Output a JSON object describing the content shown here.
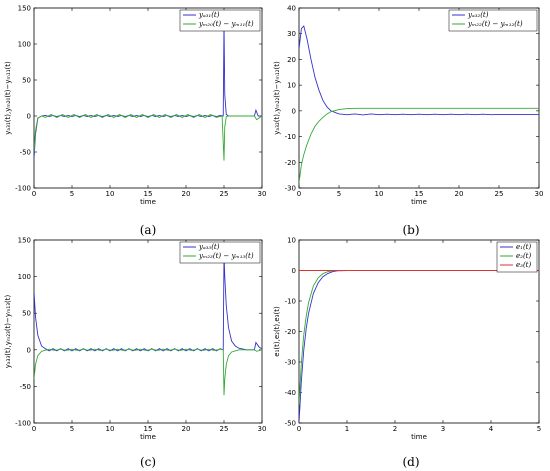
{
  "figure": {
    "captions": [
      "(a)",
      "(b)",
      "(c)",
      "(d)"
    ]
  },
  "chart_data": [
    {
      "type": "line",
      "caption": "(a)",
      "xlabel": "time",
      "ylabel": "yₐ₃₁(t),yₘ₂₀(t)−yₘ₁₁(t)",
      "xlim": [
        0,
        30
      ],
      "ylim": [
        -100,
        150
      ],
      "xticks": [
        "0",
        "5",
        "10",
        "15",
        "20",
        "25",
        "30"
      ],
      "yticks": [
        "-100",
        "-50",
        "0",
        "50",
        "100",
        "150"
      ],
      "legend_position": "top-right",
      "series": [
        {
          "name": "yₐ₃₁(t)",
          "color": "#3333cc",
          "x": [
            0,
            0.2,
            0.5,
            1,
            1.5,
            2,
            2.5,
            3,
            3.5,
            4,
            4.5,
            5,
            5.5,
            6,
            6.5,
            7,
            7.5,
            8,
            8.5,
            9,
            9.5,
            10,
            10.5,
            11,
            11.5,
            12,
            12.5,
            13,
            13.5,
            14,
            14.5,
            15,
            15.5,
            16,
            16.5,
            17,
            17.5,
            18,
            18.5,
            19,
            19.5,
            20,
            20.5,
            21,
            21.5,
            22,
            22.5,
            23,
            23.5,
            24,
            24.5,
            24.9,
            25.0,
            25.1,
            25.3,
            25.6,
            26,
            27,
            28,
            29,
            29.2,
            29.5,
            30
          ],
          "y": [
            -60,
            -25,
            -3,
            0,
            0.8,
            -0.8,
            0.8,
            -0.8,
            0.8,
            -0.8,
            0.8,
            -0.8,
            0.8,
            -0.8,
            0.8,
            -0.8,
            0.8,
            -0.8,
            0.8,
            -0.8,
            0.8,
            -0.8,
            0.8,
            -0.8,
            0.8,
            -0.8,
            0.8,
            -0.8,
            0.8,
            -0.8,
            0.8,
            -0.8,
            0.8,
            -0.8,
            0.8,
            -0.8,
            0.8,
            -0.8,
            0.8,
            -0.8,
            0.8,
            -0.8,
            0.8,
            -0.8,
            0.8,
            -0.8,
            0.8,
            -0.8,
            0.8,
            -0.8,
            0.8,
            0,
            130,
            30,
            2,
            0,
            0,
            0,
            0,
            0,
            8,
            0,
            0
          ]
        },
        {
          "name": "yₘ₂₀(t) − yₘ₁₁(t)",
          "color": "#33aa33",
          "x": [
            0,
            0.2,
            0.5,
            1,
            1.5,
            2.25,
            3,
            3.75,
            4.5,
            5.25,
            6,
            6.75,
            7.5,
            8.25,
            9,
            9.75,
            10.5,
            11.25,
            12,
            12.75,
            13.5,
            14.25,
            15,
            15.75,
            16.5,
            17.25,
            18,
            18.75,
            19.5,
            20.25,
            21,
            21.75,
            22.5,
            23.25,
            24,
            24.75,
            25.0,
            25.1,
            25.3,
            25.6,
            26,
            27,
            28,
            29,
            29.3,
            30
          ],
          "y": [
            -50,
            -20,
            -3,
            0,
            -2,
            2,
            -2,
            2,
            -2,
            2,
            -2,
            2,
            -2,
            2,
            -2,
            2,
            -2,
            2,
            -2,
            2,
            -2,
            2,
            -2,
            2,
            -2,
            2,
            -2,
            2,
            -2,
            2,
            -2,
            2,
            -2,
            2,
            -2,
            0,
            -62,
            -15,
            -1,
            0,
            0,
            0,
            0,
            0,
            -5,
            0
          ]
        }
      ]
    },
    {
      "type": "line",
      "caption": "(b)",
      "xlabel": "time",
      "ylabel": "yₐ₃₂(t),yₘ₂₂(t)−yₘ₁₂(t)",
      "xlim": [
        0,
        30
      ],
      "ylim": [
        -30,
        40
      ],
      "xticks": [
        "0",
        "5",
        "10",
        "15",
        "20",
        "25",
        "30"
      ],
      "yticks": [
        "-30",
        "-20",
        "-10",
        "0",
        "10",
        "20",
        "30",
        "40"
      ],
      "legend_position": "top-right",
      "series": [
        {
          "name": "yₐ₃₂(t)",
          "color": "#3333cc",
          "x": [
            0,
            0.3,
            0.6,
            1,
            1.5,
            2,
            2.5,
            3,
            3.5,
            4,
            5,
            6,
            7,
            8,
            9,
            10,
            11,
            12,
            13,
            14,
            15,
            16,
            17,
            18,
            19,
            20,
            21,
            22,
            23,
            24,
            25,
            26,
            27,
            28,
            29,
            30
          ],
          "y": [
            24,
            32,
            33,
            28,
            20,
            13,
            8,
            4,
            1.5,
            0,
            -1.2,
            -1.5,
            -1.2,
            -1.6,
            -1.2,
            -1.5,
            -1.3,
            -1.5,
            -1.3,
            -1.5,
            -1.3,
            -1.5,
            -1.3,
            -1.5,
            -1.3,
            -1.5,
            -1.3,
            -1.5,
            -1.3,
            -1.5,
            -1.4,
            -1.4,
            -1.4,
            -1.4,
            -1.4,
            -1.4
          ]
        },
        {
          "name": "yₘ₂₂(t) − yₘ₁₂(t)",
          "color": "#33aa33",
          "x": [
            0,
            0.3,
            0.6,
            1,
            1.5,
            2,
            2.5,
            3,
            3.5,
            4,
            5,
            6,
            7,
            8,
            10,
            12,
            15,
            20,
            25,
            30
          ],
          "y": [
            -28,
            -21,
            -17,
            -13,
            -9,
            -6,
            -4,
            -2.5,
            -1.2,
            -0.3,
            0.5,
            0.9,
            1,
            1,
            1,
            1,
            1,
            1,
            1,
            1
          ]
        }
      ]
    },
    {
      "type": "line",
      "caption": "(c)",
      "xlabel": "time",
      "ylabel": "yₐ₃₃(t),yₘ₂₃(t)−yₘ₁₃(t)",
      "xlim": [
        0,
        30
      ],
      "ylim": [
        -100,
        150
      ],
      "xticks": [
        "0",
        "5",
        "10",
        "15",
        "20",
        "25",
        "30"
      ],
      "yticks": [
        "-100",
        "-50",
        "0",
        "50",
        "100",
        "150"
      ],
      "legend_position": "top-right",
      "series": [
        {
          "name": "yₐ₃₃(t)",
          "color": "#3333cc",
          "x": [
            0,
            0.2,
            0.5,
            1,
            1.5,
            2,
            2.5,
            3,
            3.5,
            4,
            4.5,
            5,
            5.5,
            6,
            6.5,
            7,
            7.5,
            8,
            8.5,
            9,
            9.5,
            10,
            10.5,
            11,
            11.5,
            12,
            12.5,
            13,
            13.5,
            14,
            14.5,
            15,
            15.5,
            16,
            16.5,
            17,
            17.5,
            18,
            18.5,
            19,
            19.5,
            20,
            20.5,
            21,
            21.5,
            22,
            22.5,
            23,
            23.5,
            24,
            24.5,
            24.9,
            25.0,
            25.1,
            25.3,
            25.6,
            26,
            26.5,
            27,
            28,
            29,
            29.2,
            29.6,
            30
          ],
          "y": [
            80,
            45,
            20,
            5,
            1.5,
            -1.5,
            1.5,
            -1.5,
            1.5,
            -1.5,
            1.5,
            -1.5,
            1.5,
            -1.5,
            1.5,
            -1.5,
            1.5,
            -1.5,
            1.5,
            -1.5,
            1.5,
            -1.5,
            1.5,
            -1.5,
            1.5,
            -1.5,
            1.5,
            -1.5,
            1.5,
            -1.5,
            1.5,
            -1.5,
            1.5,
            -1.5,
            1.5,
            -1.5,
            1.5,
            -1.5,
            1.5,
            -1.5,
            1.5,
            -1.5,
            1.5,
            -1.5,
            1.5,
            -1.5,
            1.5,
            -1.5,
            1.5,
            -1.5,
            1.5,
            0,
            130,
            100,
            60,
            30,
            12,
            5,
            2,
            0,
            0,
            10,
            4,
            1
          ]
        },
        {
          "name": "yₘ₂₃(t) − yₘ₁₃(t)",
          "color": "#33aa33",
          "x": [
            0,
            0.2,
            0.5,
            1,
            1.5,
            2,
            2.75,
            3.5,
            4.25,
            5,
            5.75,
            6.5,
            7.25,
            8,
            8.75,
            9.5,
            10.25,
            11,
            11.75,
            12.5,
            13.25,
            14,
            14.75,
            15.5,
            16.25,
            17,
            17.75,
            18.5,
            19.25,
            20,
            20.75,
            21.5,
            22.25,
            23,
            23.75,
            24.5,
            24.9,
            25.0,
            25.1,
            25.3,
            25.6,
            26,
            27,
            28,
            29,
            29.3,
            30
          ],
          "y": [
            -40,
            -20,
            -8,
            -2,
            -0.5,
            0.8,
            -0.8,
            0.8,
            -0.8,
            0.8,
            -0.8,
            0.8,
            -0.8,
            0.8,
            -0.8,
            0.8,
            -0.8,
            0.8,
            -0.8,
            0.8,
            -0.8,
            0.8,
            -0.8,
            0.8,
            -0.8,
            0.8,
            -0.8,
            0.8,
            -0.8,
            0.8,
            -0.8,
            0.8,
            -0.8,
            0.8,
            -0.8,
            0.8,
            0,
            -62,
            -40,
            -20,
            -8,
            -3,
            0,
            0,
            0,
            -2,
            0
          ]
        }
      ]
    },
    {
      "type": "line",
      "caption": "(d)",
      "xlabel": "time",
      "ylabel": "e₁(t),e₂(t),e₃(t)",
      "xlim": [
        0,
        5
      ],
      "ylim": [
        -50,
        10
      ],
      "xticks": [
        "0",
        "1",
        "2",
        "3",
        "4",
        "5"
      ],
      "yticks": [
        "-50",
        "-40",
        "-30",
        "-20",
        "-10",
        "0",
        "10"
      ],
      "legend_position": "top-right",
      "series": [
        {
          "name": "e₁(t)",
          "color": "#3333cc",
          "x": [
            0,
            0.05,
            0.1,
            0.15,
            0.2,
            0.3,
            0.4,
            0.5,
            0.6,
            0.7,
            0.8,
            1,
            2,
            3,
            4,
            5
          ],
          "y": [
            -50,
            -36,
            -26,
            -19,
            -14,
            -7.5,
            -4,
            -2,
            -1,
            -0.4,
            -0.1,
            0,
            0,
            0,
            0,
            0
          ]
        },
        {
          "name": "e₂(t)",
          "color": "#33aa33",
          "x": [
            0,
            0.05,
            0.1,
            0.15,
            0.2,
            0.3,
            0.4,
            0.5,
            0.6,
            0.7,
            0.8,
            1,
            2,
            3,
            4,
            5
          ],
          "y": [
            -44,
            -30,
            -21,
            -15,
            -10.5,
            -5,
            -2.4,
            -1,
            -0.4,
            -0.1,
            0,
            0,
            0,
            0,
            0,
            0
          ]
        },
        {
          "name": "e₃(t)",
          "color": "#dd3333",
          "x": [
            0,
            1,
            2,
            3,
            4,
            5
          ],
          "y": [
            0,
            0,
            0,
            0,
            0,
            0
          ]
        }
      ]
    }
  ]
}
